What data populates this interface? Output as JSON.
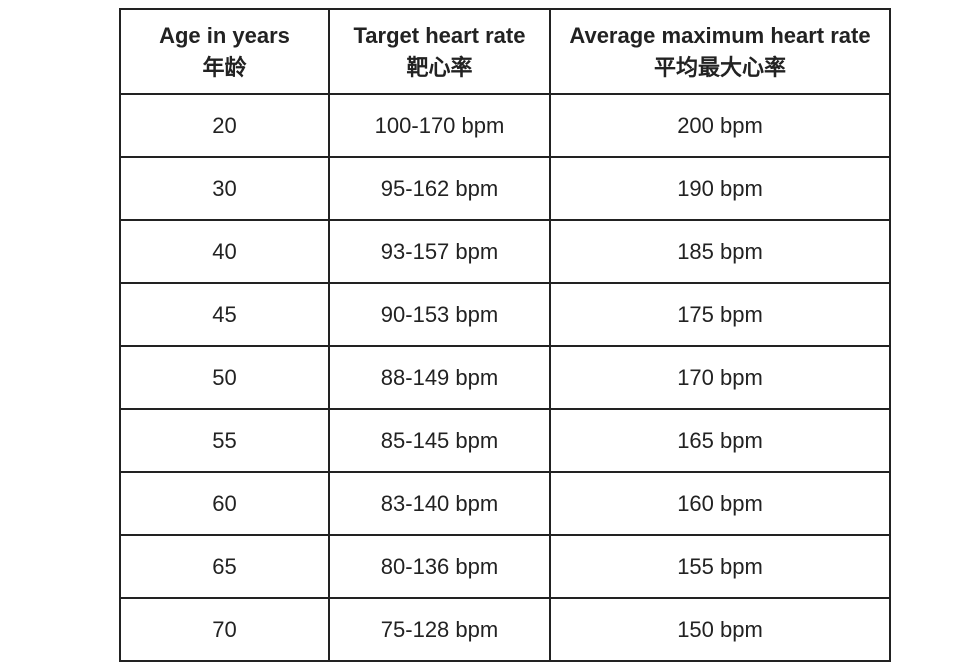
{
  "table": {
    "header": [
      {
        "en": "Age in years",
        "zh": "年龄"
      },
      {
        "en": "Target heart rate",
        "zh": "靶心率"
      },
      {
        "en": "Average maximum heart rate",
        "zh": "平均最大心率"
      }
    ],
    "rows": [
      [
        "20",
        "100-170 bpm",
        "200 bpm"
      ],
      [
        "30",
        "95-162 bpm",
        "190 bpm"
      ],
      [
        "40",
        "93-157 bpm",
        "185 bpm"
      ],
      [
        "45",
        "90-153 bpm",
        "175 bpm"
      ],
      [
        "50",
        "88-149 bpm",
        "170 bpm"
      ],
      [
        "55",
        "85-145 bpm",
        "165 bpm"
      ],
      [
        "60",
        "83-140 bpm",
        "160 bpm"
      ],
      [
        "65",
        "80-136 bpm",
        "155 bpm"
      ],
      [
        "70",
        "75-128 bpm",
        "150 bpm"
      ]
    ]
  }
}
